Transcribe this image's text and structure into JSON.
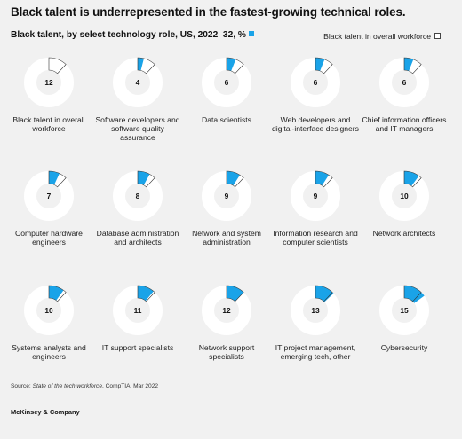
{
  "title": "Black talent is underrepresented in the fastest-growing technical roles.",
  "subtitle": "Black talent, by select technology role, US, 2022–32, %",
  "legend": {
    "overall_label": "Black talent in overall workforce"
  },
  "colors": {
    "role": "#1aa3e8",
    "overall": "#ffffff",
    "ring": "#ffffff",
    "outline": "#333333",
    "background": "#f1f1f1"
  },
  "source": {
    "prefix": "Source: ",
    "title": "State of the tech workforce",
    "suffix": ", CompTIA, Mar 2022"
  },
  "brand": "McKinsey & Company",
  "chart_data": {
    "type": "pie",
    "overall_value": 12,
    "items": [
      {
        "label": "Black talent in overall workforce",
        "value": 12,
        "kind": "overall"
      },
      {
        "label": "Software developers and software quality assurance",
        "value": 4,
        "kind": "role"
      },
      {
        "label": "Data scientists",
        "value": 6,
        "kind": "role"
      },
      {
        "label": "Web developers and digital-interface designers",
        "value": 6,
        "kind": "role"
      },
      {
        "label": "Chief information officers and IT managers",
        "value": 6,
        "kind": "role"
      },
      {
        "label": "Computer hardware engineers",
        "value": 7,
        "kind": "role"
      },
      {
        "label": "Database administration and architects",
        "value": 8,
        "kind": "role"
      },
      {
        "label": "Network and system administration",
        "value": 9,
        "kind": "role"
      },
      {
        "label": "Information research and computer scientists",
        "value": 9,
        "kind": "role"
      },
      {
        "label": "Network architects",
        "value": 10,
        "kind": "role"
      },
      {
        "label": "Systems analysts and engineers",
        "value": 10,
        "kind": "role"
      },
      {
        "label": "IT support specialists",
        "value": 11,
        "kind": "role"
      },
      {
        "label": "Network support specialists",
        "value": 12,
        "kind": "role"
      },
      {
        "label": "IT project management, emerging tech, other",
        "value": 13,
        "kind": "role"
      },
      {
        "label": "Cybersecurity",
        "value": 15,
        "kind": "role"
      }
    ]
  }
}
